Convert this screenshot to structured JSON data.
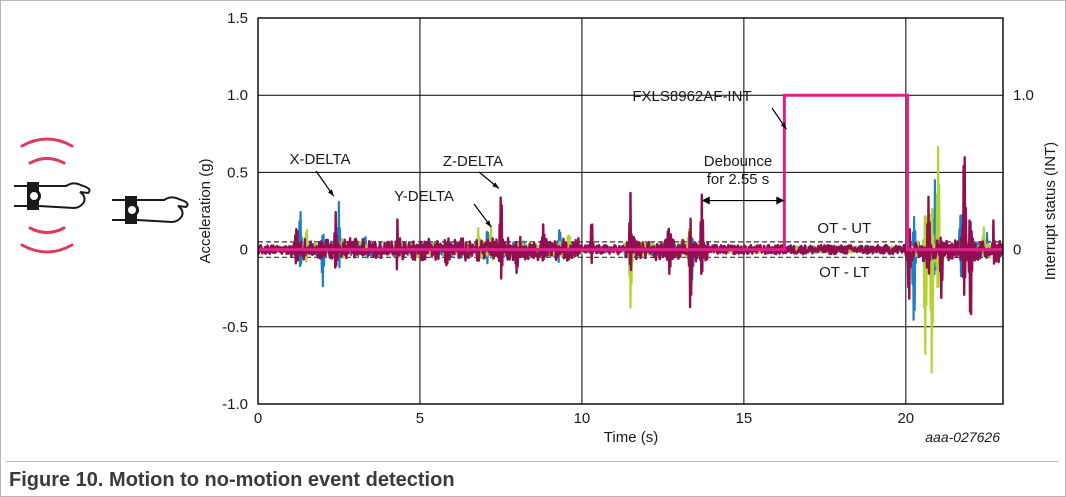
{
  "caption": "Figure 10.  Motion to no-motion event detection",
  "figure_id": "aaa-027626",
  "colors": {
    "x_delta": "#1e7fc3",
    "y_delta": "#b3d334",
    "z_delta": "#8f0f50",
    "int": "#e0218a",
    "axes": "#000000",
    "icon": "#e03a57"
  },
  "icons": [
    "motion-arcs-icon",
    "wrist-watch-moving-icon",
    "wrist-watch-still-icon"
  ],
  "chart_data": {
    "type": "line",
    "title": "",
    "xlabel": "Time (s)",
    "ylabel": "Acceleration (g)",
    "y2label": "Interrupt status (INT)",
    "xlim": [
      0,
      23
    ],
    "ylim": [
      -1.0,
      1.5
    ],
    "y2lim": [
      -1.0,
      1.5
    ],
    "xticks": [
      0,
      5,
      10,
      15,
      20
    ],
    "xtick_labels": [
      "0",
      "5",
      "10",
      "15",
      "20"
    ],
    "yticks": [
      -1.0,
      -0.5,
      0,
      0.5,
      1.0,
      1.5
    ],
    "ytick_labels": [
      "-1.0",
      "-0.5",
      "0",
      "0.5",
      "1.0",
      "1.5"
    ],
    "y2ticks": [
      0,
      1.0
    ],
    "y2tick_labels": [
      "0",
      "1.0"
    ],
    "grid": true,
    "thresholds": [
      {
        "label": "OT - UT",
        "value": 0.05
      },
      {
        "label": "OT - LT",
        "value": -0.05
      }
    ],
    "series": [
      {
        "name": "X-DELTA",
        "color": "#1e7fc3",
        "noise": 0.02,
        "bursts": [
          {
            "x": 1.3,
            "a": 0.28
          },
          {
            "x": 2.0,
            "a": -0.25
          },
          {
            "x": 2.5,
            "a": 0.3
          },
          {
            "x": 3.3,
            "a": 0.1
          },
          {
            "x": 7.1,
            "a": 0.15
          },
          {
            "x": 9.3,
            "a": 0.15
          },
          {
            "x": 11.5,
            "a": 0.18
          },
          {
            "x": 13.4,
            "a": -0.2
          },
          {
            "x": 20.25,
            "a": -0.55
          },
          {
            "x": 20.9,
            "a": 0.48
          },
          {
            "x": 21.7,
            "a": 0.3
          },
          {
            "x": 22.5,
            "a": 0.12
          }
        ]
      },
      {
        "name": "Y-DELTA",
        "color": "#b3d334",
        "noise": 0.02,
        "bursts": [
          {
            "x": 1.5,
            "a": 0.12
          },
          {
            "x": 2.6,
            "a": 0.1
          },
          {
            "x": 6.8,
            "a": 0.12
          },
          {
            "x": 7.2,
            "a": 0.14
          },
          {
            "x": 9.6,
            "a": 0.12
          },
          {
            "x": 11.5,
            "a": -0.4
          },
          {
            "x": 13.3,
            "a": 0.15
          },
          {
            "x": 20.6,
            "a": -0.67
          },
          {
            "x": 21.0,
            "a": 0.72
          },
          {
            "x": 20.8,
            "a": -0.78
          },
          {
            "x": 22.4,
            "a": 0.12
          }
        ]
      },
      {
        "name": "Z-DELTA",
        "color": "#8f0f50",
        "noise": 0.03,
        "bursts": [
          {
            "x": 1.2,
            "a": 0.15
          },
          {
            "x": 2.4,
            "a": 0.22
          },
          {
            "x": 4.3,
            "a": 0.15
          },
          {
            "x": 5.8,
            "a": -0.12
          },
          {
            "x": 7.5,
            "a": 0.37
          },
          {
            "x": 8.0,
            "a": -0.15
          },
          {
            "x": 8.8,
            "a": 0.2
          },
          {
            "x": 10.3,
            "a": 0.18
          },
          {
            "x": 11.5,
            "a": 0.3
          },
          {
            "x": 12.7,
            "a": 0.22
          },
          {
            "x": 13.35,
            "a": -0.45
          },
          {
            "x": 13.7,
            "a": 0.37
          },
          {
            "x": 20.1,
            "a": -0.4
          },
          {
            "x": 20.7,
            "a": 0.35
          },
          {
            "x": 21.1,
            "a": -0.3
          },
          {
            "x": 21.8,
            "a": 0.72
          },
          {
            "x": 22.0,
            "a": -0.53
          },
          {
            "x": 22.7,
            "a": 0.15
          }
        ]
      },
      {
        "name": "FXLS8962AF-INT",
        "axis": "right",
        "color": "#e0218a",
        "x": [
          0,
          16.25,
          16.25,
          20.05,
          20.05,
          23
        ],
        "y": [
          0,
          0,
          1.0,
          1.0,
          0,
          0
        ]
      }
    ],
    "annotations": [
      {
        "name": "x-delta-label",
        "text": "X-DELTA",
        "x": 2.4,
        "y": 0.32
      },
      {
        "name": "y-delta-label",
        "text": "Y-DELTA",
        "x": 7.2,
        "y": 0.12
      },
      {
        "name": "z-delta-label",
        "text": "Z-DELTA",
        "x": 7.5,
        "y": 0.37
      },
      {
        "name": "int-label",
        "text": "FXLS8962AF-INT",
        "x": 16.25,
        "y": 0.78
      },
      {
        "name": "debounce-label",
        "lines": [
          "Debounce",
          "for 2.55 s"
        ],
        "x1": 13.7,
        "x2": 16.25,
        "y": 0.35
      },
      {
        "name": "ot-ut-label",
        "text": "OT - UT",
        "x": 18.1,
        "y": 0.12
      },
      {
        "name": "ot-lt-label",
        "text": "OT - LT",
        "x": 18.1,
        "y": -0.15
      }
    ]
  }
}
